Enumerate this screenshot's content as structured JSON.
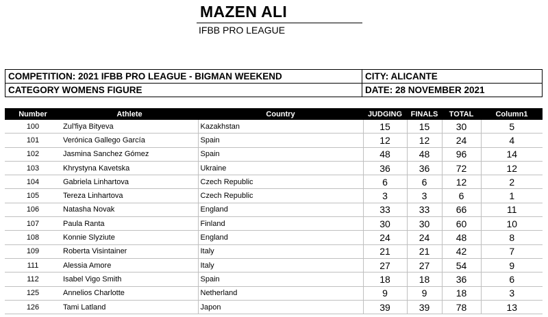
{
  "judge": {
    "name": "MAZEN ALI",
    "organization": "IFBB PRO LEAGUE"
  },
  "info": {
    "competition": "COMPETITION:  2021 IFBB PRO LEAGUE - BIGMAN WEEKEND",
    "city": "CITY: ALICANTE",
    "category": "CATEGORY   WOMENS FIGURE",
    "date": "DATE: 28 NOVEMBER 2021"
  },
  "columns": {
    "number": "Number",
    "athlete": "Athlete",
    "country": "Country",
    "judging": "JUDGING",
    "finals": "FINALS",
    "total": "TOTAL",
    "rank": "Column1"
  },
  "rows": [
    {
      "number": "100",
      "athlete": "Zul'fiya Bityeva",
      "country": "Kazakhstan",
      "judging": "15",
      "finals": "15",
      "total": "30",
      "rank": "5"
    },
    {
      "number": "101",
      "athlete": "Verónica Gallego García",
      "country": "Spain",
      "judging": "12",
      "finals": "12",
      "total": "24",
      "rank": "4"
    },
    {
      "number": "102",
      "athlete": "Jasmina Sanchez Gómez",
      "country": "Spain",
      "judging": "48",
      "finals": "48",
      "total": "96",
      "rank": "14"
    },
    {
      "number": "103",
      "athlete": "Khrystyna Kavetska",
      "country": "Ukraine",
      "judging": "36",
      "finals": "36",
      "total": "72",
      "rank": "12"
    },
    {
      "number": "104",
      "athlete": "Gabriela Linhartova",
      "country": "Czech Republic",
      "judging": "6",
      "finals": "6",
      "total": "12",
      "rank": "2"
    },
    {
      "number": "105",
      "athlete": "Tereza Linhartova",
      "country": "Czech Republic",
      "judging": "3",
      "finals": "3",
      "total": "6",
      "rank": "1"
    },
    {
      "number": "106",
      "athlete": "Natasha Novak",
      "country": "England",
      "judging": "33",
      "finals": "33",
      "total": "66",
      "rank": "11"
    },
    {
      "number": "107",
      "athlete": "Paula Ranta",
      "country": "Finland",
      "judging": "30",
      "finals": "30",
      "total": "60",
      "rank": "10"
    },
    {
      "number": "108",
      "athlete": "Konnie Slyziute",
      "country": "England",
      "judging": "24",
      "finals": "24",
      "total": "48",
      "rank": "8"
    },
    {
      "number": "109",
      "athlete": "Roberta Visintainer",
      "country": "Italy",
      "judging": "21",
      "finals": "21",
      "total": "42",
      "rank": "7"
    },
    {
      "number": "111",
      "athlete": "Alessia Amore",
      "country": "Italy",
      "judging": "27",
      "finals": "27",
      "total": "54",
      "rank": "9"
    },
    {
      "number": "112",
      "athlete": "Isabel Vigo Smith",
      "country": "Spain",
      "judging": "18",
      "finals": "18",
      "total": "36",
      "rank": "6"
    },
    {
      "number": "125",
      "athlete": "Annelios Charlotte",
      "country": "Netherland",
      "judging": "9",
      "finals": "9",
      "total": "18",
      "rank": "3"
    },
    {
      "number": "126",
      "athlete": "Tami Latland",
      "country": "Japon",
      "judging": "39",
      "finals": "39",
      "total": "78",
      "rank": "13"
    }
  ]
}
